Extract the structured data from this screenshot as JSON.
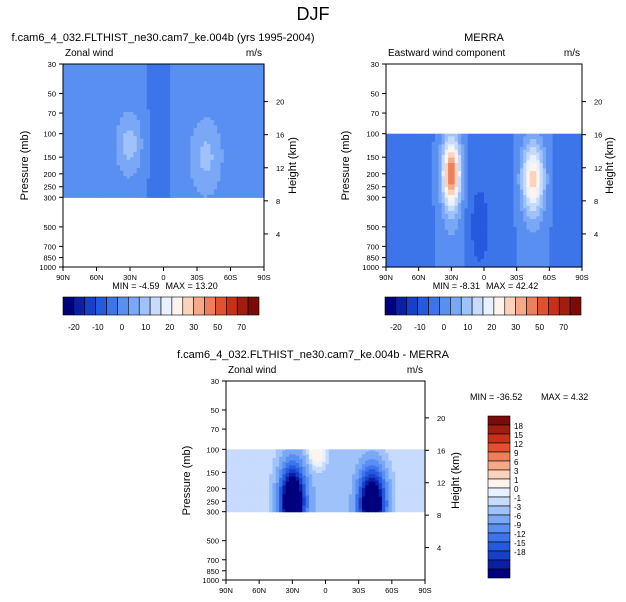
{
  "page": {
    "title": "DJF"
  },
  "colors": {
    "ramp": [
      "#00007f",
      "#0b1fa6",
      "#1640c8",
      "#2659de",
      "#3d74ea",
      "#5a8ff2",
      "#7aa8f6",
      "#9fc2fa",
      "#c6dbfd",
      "#e8f1ff",
      "#fff3ec",
      "#fbd3bd",
      "#f6a988",
      "#ee7f5a",
      "#e2512f",
      "#c9301a",
      "#a01d10",
      "#7a0b06"
    ],
    "diffRamp": [
      "#00007f",
      "#0b1fa6",
      "#1640c8",
      "#2659de",
      "#3d74ea",
      "#5a8ff2",
      "#7aa8f6",
      "#9fc2fa",
      "#c6dbfd",
      "#e8f1ff",
      "#fff3ec",
      "#fbd3bd",
      "#f6a988",
      "#ee7f5a",
      "#e2512f",
      "#c9301a",
      "#a01d10",
      "#7a0b06"
    ]
  },
  "chart_data": [
    {
      "type": "heatmap",
      "title": "f.cam6_4_032.FLTHIST_ne30.cam7_ke.004b (yrs 1995-2004)",
      "left_label": "Zonal wind",
      "right_label": "m/s",
      "ylabel": "Pressure (mb)",
      "y2label": "Height (km)",
      "x_ticks": [
        "90N",
        "60N",
        "30N",
        "0",
        "30S",
        "60S",
        "90S"
      ],
      "x_range": [
        90,
        -90
      ],
      "y_ticks": [
        "30",
        "50",
        "70",
        "100",
        "150",
        "200",
        "250",
        "300",
        "500",
        "700",
        "850",
        "1000"
      ],
      "y_tick_values": [
        30,
        50,
        70,
        100,
        150,
        200,
        250,
        300,
        500,
        700,
        850,
        1000
      ],
      "y_range": [
        30,
        1000
      ],
      "height_ticks": [
        "20",
        "16",
        "12",
        "8",
        "4"
      ],
      "height_tick_values": [
        20,
        16,
        12,
        8,
        4
      ],
      "data_pressure_range": [
        30,
        300
      ],
      "min_text": "MIN = -4.59",
      "max_text": "MAX = 13.20",
      "colorbar_labels": [
        "-20",
        "-10",
        "0",
        "10",
        "20",
        "30",
        "50",
        "70"
      ],
      "field": "model"
    },
    {
      "type": "heatmap",
      "title": "MERRA",
      "left_label": "Eastward wind component",
      "right_label": "m/s",
      "ylabel": "Pressure (mb)",
      "y2label": "Height (km)",
      "x_ticks": [
        "90N",
        "60N",
        "30N",
        "0",
        "30S",
        "60S",
        "90S"
      ],
      "x_range": [
        90,
        -90
      ],
      "y_ticks": [
        "30",
        "50",
        "70",
        "100",
        "150",
        "200",
        "250",
        "300",
        "500",
        "700",
        "850",
        "1000"
      ],
      "y_tick_values": [
        30,
        50,
        70,
        100,
        150,
        200,
        250,
        300,
        500,
        700,
        850,
        1000
      ],
      "y_range": [
        30,
        1000
      ],
      "height_ticks": [
        "20",
        "16",
        "12",
        "8",
        "4"
      ],
      "height_tick_values": [
        20,
        16,
        12,
        8,
        4
      ],
      "data_pressure_range": [
        100,
        1000
      ],
      "min_text": "MIN = -8.31",
      "max_text": "MAX = 42.42",
      "colorbar_labels": [
        "-20",
        "-10",
        "0",
        "10",
        "20",
        "30",
        "50",
        "70"
      ],
      "field": "obs"
    },
    {
      "type": "heatmap",
      "title": "f.cam6_4_032.FLTHIST_ne30.cam7_ke.004b - MERRA",
      "left_label": "Zonal wind",
      "right_label": "m/s",
      "ylabel": "Pressure (mb)",
      "y2label": "Height (km)",
      "x_ticks": [
        "90N",
        "60N",
        "30N",
        "0",
        "30S",
        "60S",
        "90S"
      ],
      "x_range": [
        90,
        -90
      ],
      "y_ticks": [
        "30",
        "50",
        "70",
        "100",
        "150",
        "200",
        "250",
        "300",
        "500",
        "700",
        "850",
        "1000"
      ],
      "y_tick_values": [
        30,
        50,
        70,
        100,
        150,
        200,
        250,
        300,
        500,
        700,
        850,
        1000
      ],
      "y_range": [
        30,
        1000
      ],
      "height_ticks": [
        "20",
        "16",
        "12",
        "8",
        "4"
      ],
      "height_tick_values": [
        20,
        16,
        12,
        8,
        4
      ],
      "data_pressure_range": [
        100,
        300
      ],
      "min_text": "MIN = -36.52",
      "max_text": "MAX =   4.32",
      "colorbar_labels": [
        "18",
        "15",
        "12",
        "9",
        "6",
        "3",
        "1",
        "0",
        "-1",
        "-3",
        "-6",
        "-9",
        "-12",
        "-15",
        "-18"
      ],
      "field": "diff"
    }
  ]
}
